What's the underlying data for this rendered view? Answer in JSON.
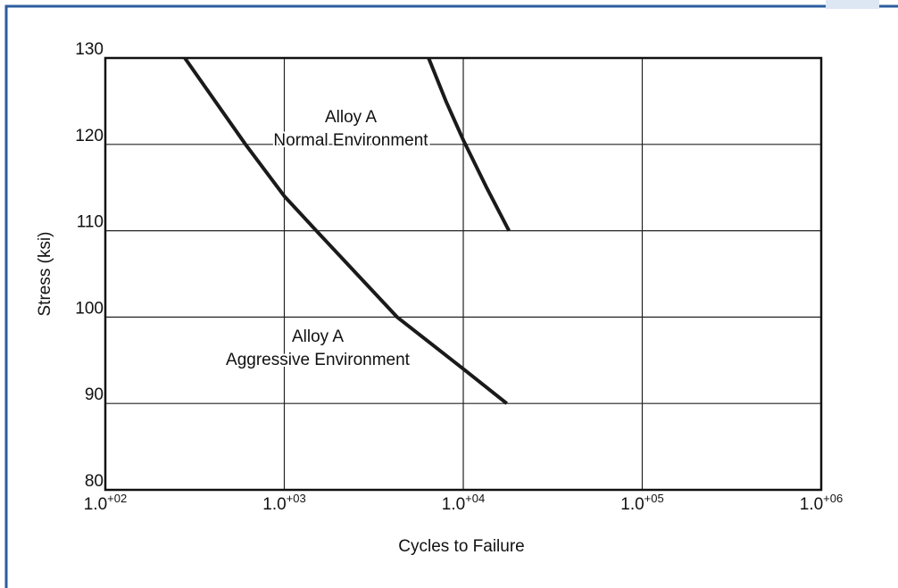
{
  "chart_data": {
    "type": "line",
    "xlabel": "Cycles to Failure",
    "ylabel": "Stress (ksi)",
    "xscale": "log",
    "xlim": [
      100,
      1000000
    ],
    "ylim": [
      80,
      130
    ],
    "xticks": [
      {
        "value": 100,
        "label": "1.0",
        "superscript": "+02"
      },
      {
        "value": 1000,
        "label": "1.0",
        "superscript": "+03"
      },
      {
        "value": 10000,
        "label": "1.0",
        "superscript": "+04"
      },
      {
        "value": 100000,
        "label": "1.0",
        "superscript": "+05"
      },
      {
        "value": 1000000,
        "label": "1.0",
        "superscript": "+06"
      }
    ],
    "yticks": [
      80,
      90,
      100,
      110,
      120,
      130
    ],
    "grid": true,
    "series": [
      {
        "name": "Alloy A Normal Environment",
        "color": "#1a1a1a",
        "x": [
          6400,
          8000,
          10000,
          13500,
          18000
        ],
        "values": [
          130,
          125,
          120.5,
          115,
          110
        ]
      },
      {
        "name": "Alloy A Aggressive Environment",
        "color": "#1a1a1a",
        "x": [
          278,
          607,
          1000,
          1510,
          4270,
          10000,
          17500
        ],
        "values": [
          130,
          120,
          114,
          110,
          100,
          94,
          90
        ]
      }
    ],
    "annotations": [
      {
        "lines": [
          "Alloy A",
          "Normal Environment"
        ]
      },
      {
        "lines": [
          "Alloy A",
          "Aggressive Environment"
        ]
      }
    ]
  }
}
